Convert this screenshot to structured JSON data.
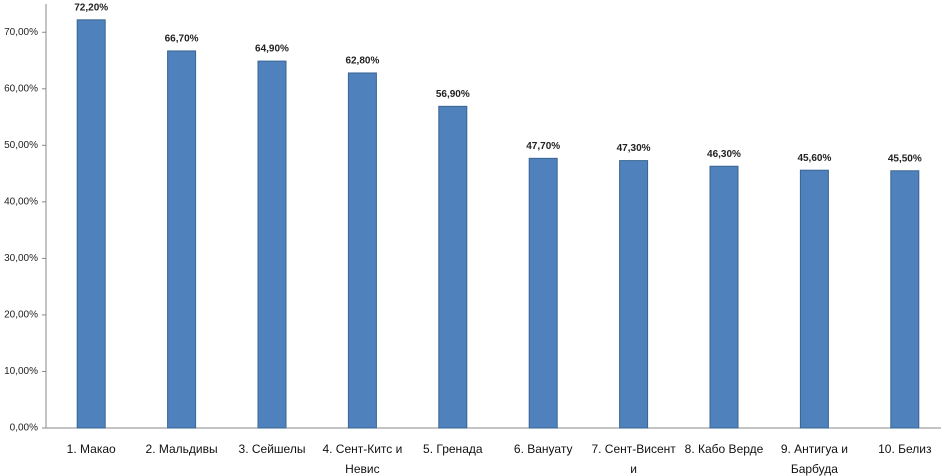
{
  "chart_data": {
    "type": "bar",
    "categories": [
      "1. Макао",
      "2. Мальдивы",
      "3. Сейшелы",
      "4. Сент-Китс и Невис",
      "5. Гренада",
      "6. Вануату",
      "7. Сент-Висент и",
      "8. Кабо Верде",
      "9. Антигуа и Барбуда",
      "10. Белиз"
    ],
    "values": [
      72.2,
      66.7,
      64.9,
      62.8,
      56.9,
      47.7,
      47.3,
      46.3,
      45.6,
      45.5
    ],
    "value_labels": [
      "72,20%",
      "66,70%",
      "64,90%",
      "62,80%",
      "56,90%",
      "47,70%",
      "47,30%",
      "46,30%",
      "45,60%",
      "45,50%"
    ],
    "color": "#4f81bd",
    "ylim": [
      0,
      75
    ],
    "yticks": [
      {
        "value": 0,
        "label": "0,00%"
      },
      {
        "value": 10,
        "label": "10,00%"
      },
      {
        "value": 20,
        "label": "20,00%"
      },
      {
        "value": 30,
        "label": "30,00%"
      },
      {
        "value": 40,
        "label": "40,00%"
      },
      {
        "value": 50,
        "label": "50,00%"
      },
      {
        "value": 60,
        "label": "60,00%"
      },
      {
        "value": 70,
        "label": "70,00%"
      }
    ],
    "grid": false
  }
}
